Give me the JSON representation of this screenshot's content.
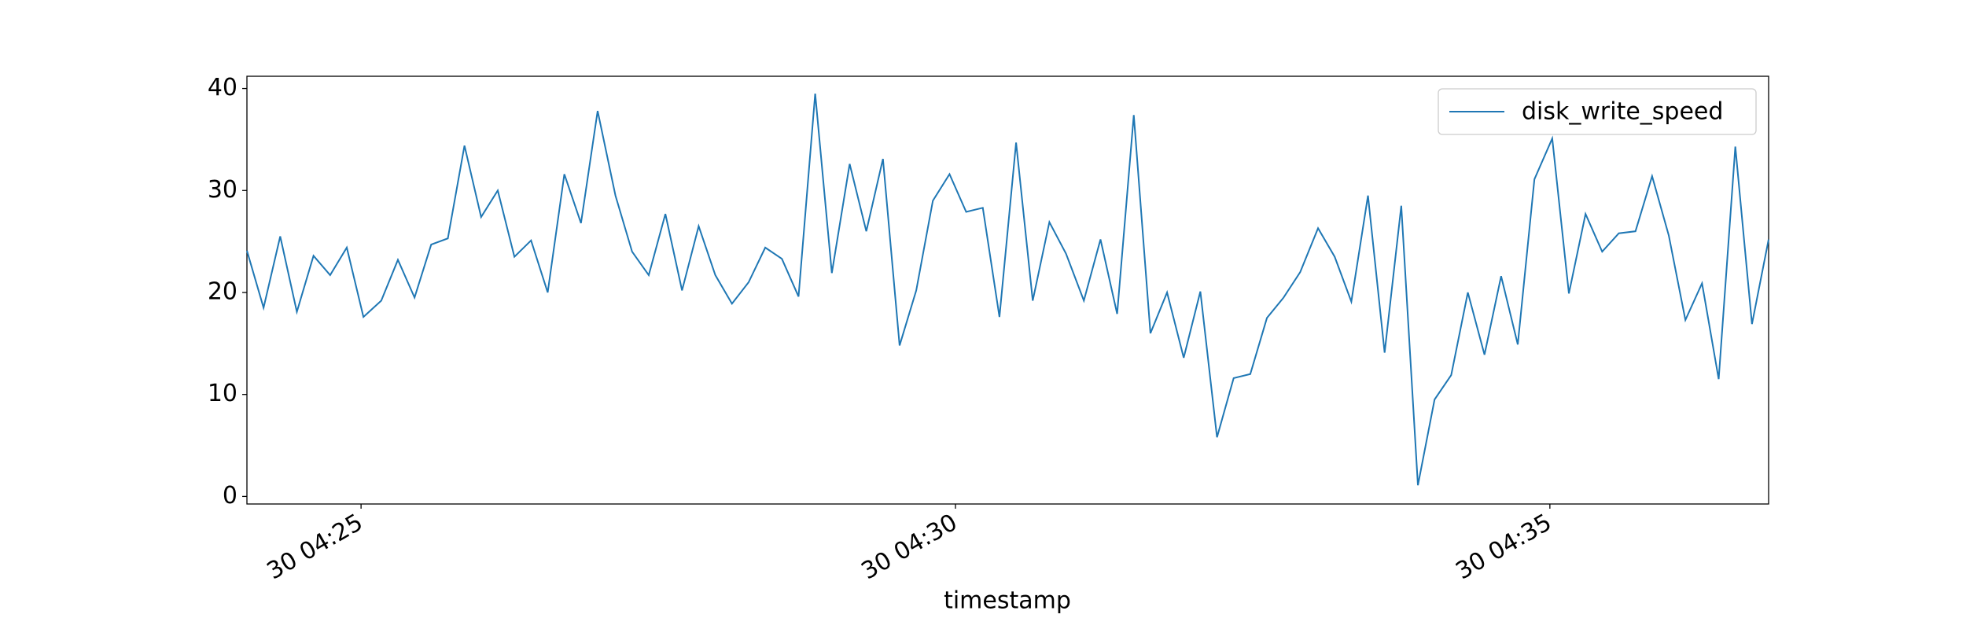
{
  "chart_data": {
    "type": "line",
    "xlabel": "timestamp",
    "x": [
      24.04,
      24.18,
      24.32,
      24.46,
      24.6,
      24.74,
      24.88,
      25.02,
      25.17,
      25.31,
      25.45,
      25.59,
      25.73,
      25.87,
      26.01,
      26.15,
      26.29,
      26.43,
      26.57,
      26.71,
      26.85,
      26.99,
      27.14,
      27.28,
      27.42,
      27.56,
      27.7,
      27.84,
      27.98,
      28.12,
      28.26,
      28.4,
      28.54,
      28.68,
      28.82,
      28.96,
      29.11,
      29.25,
      29.39,
      29.53,
      29.67,
      29.81,
      29.95,
      30.09,
      30.23,
      30.37,
      30.51,
      30.65,
      30.79,
      30.93,
      31.08,
      31.22,
      31.36,
      31.5,
      31.64,
      31.78,
      31.92,
      32.06,
      32.2,
      32.34,
      32.48,
      32.62,
      32.76,
      32.9,
      33.05,
      33.19,
      33.33,
      33.47,
      33.61,
      33.75,
      33.89,
      34.03,
      34.17,
      34.31,
      34.45,
      34.59,
      34.73,
      34.87,
      35.02,
      35.16,
      35.3,
      35.44,
      35.58,
      35.72,
      35.86,
      36.0,
      36.14,
      36.28,
      36.42,
      36.56,
      36.7,
      36.84
    ],
    "series": [
      {
        "name": "disk_write_speed",
        "color": "#1f77b4",
        "values": [
          24.1,
          18.5,
          25.5,
          18.1,
          23.6,
          21.7,
          24.4,
          17.6,
          19.2,
          23.2,
          19.5,
          24.7,
          25.3,
          34.4,
          27.4,
          30.0,
          23.5,
          25.1,
          20.0,
          31.6,
          26.8,
          37.8,
          29.5,
          24.0,
          21.7,
          27.7,
          20.2,
          26.5,
          21.7,
          18.9,
          21.0,
          24.4,
          23.3,
          19.6,
          39.5,
          21.9,
          32.6,
          26.0,
          33.1,
          14.8,
          20.2,
          29.0,
          31.6,
          27.9,
          28.3,
          17.6,
          34.7,
          19.2,
          26.9,
          23.8,
          19.2,
          25.2,
          17.9,
          37.4,
          16.0,
          20.0,
          13.6,
          20.1,
          5.8,
          11.6,
          12.0,
          17.5,
          19.5,
          22.0,
          26.3,
          23.5,
          19.1,
          29.5,
          14.1,
          28.5,
          1.1,
          9.5,
          11.9,
          20.0,
          13.9,
          21.6,
          14.9,
          31.1,
          35.1,
          19.9,
          27.7,
          24.0,
          25.8,
          26.0,
          31.4,
          25.6,
          17.3,
          20.9,
          11.5,
          34.3,
          16.9,
          25.2
        ]
      }
    ],
    "xlim": [
      24.04,
      36.84
    ],
    "xticks": [
      {
        "value": 25,
        "label": "30 04:25"
      },
      {
        "value": 30,
        "label": "30 04:30"
      },
      {
        "value": 35,
        "label": "30 04:35"
      }
    ],
    "ylim": [
      -0.74,
      41.2
    ],
    "yticks": [
      0,
      10,
      20,
      30,
      40
    ],
    "grid": false,
    "legend": "upper right"
  }
}
